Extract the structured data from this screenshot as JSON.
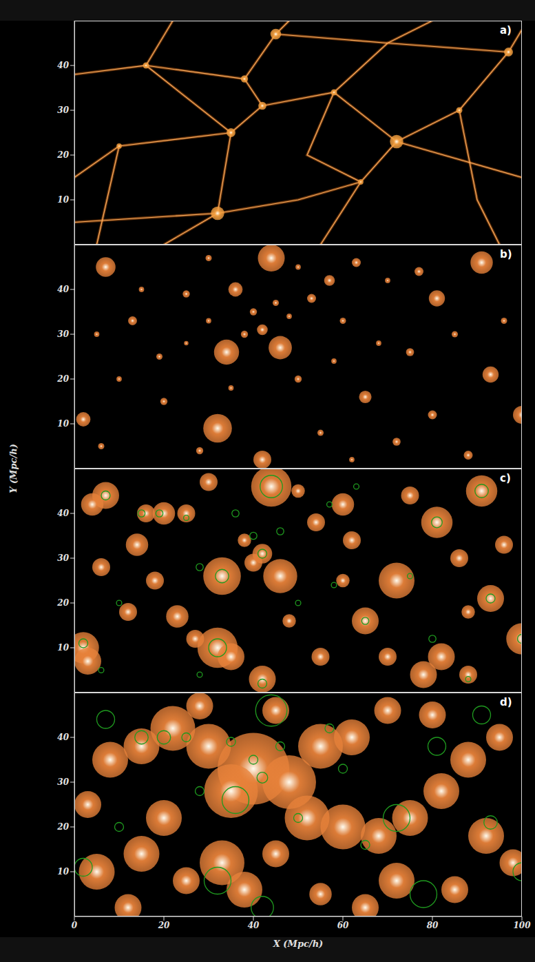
{
  "xlabel": "X (Mpc/h)",
  "ylabel": "Y (Mpc/h)",
  "chart_data": [
    {
      "type": "scatter",
      "label": "a)",
      "xlim": [
        0,
        100
      ],
      "ylim": [
        0,
        50
      ],
      "xticks": [
        0,
        20,
        40,
        60,
        80,
        100
      ],
      "yticks": [
        10,
        20,
        30,
        40
      ],
      "tick_labels": "y",
      "filaments": {
        "color": "#e0701a",
        "lines": [
          [
            [
              0,
              38
            ],
            [
              16,
              40
            ],
            [
              35,
              25
            ],
            [
              32,
              7
            ],
            [
              20,
              0
            ]
          ],
          [
            [
              16,
              40
            ],
            [
              38,
              37
            ],
            [
              45,
              47
            ],
            [
              48,
              50
            ]
          ],
          [
            [
              38,
              37
            ],
            [
              42,
              31
            ],
            [
              35,
              25
            ]
          ],
          [
            [
              42,
              31
            ],
            [
              58,
              34
            ],
            [
              72,
              23
            ],
            [
              100,
              15
            ]
          ],
          [
            [
              72,
              23
            ],
            [
              64,
              14
            ],
            [
              55,
              0
            ]
          ],
          [
            [
              72,
              23
            ],
            [
              86,
              30
            ],
            [
              97,
              43
            ],
            [
              100,
              48
            ]
          ],
          [
            [
              58,
              34
            ],
            [
              70,
              45
            ],
            [
              80,
              50
            ]
          ],
          [
            [
              32,
              7
            ],
            [
              50,
              10
            ],
            [
              64,
              14
            ]
          ],
          [
            [
              35,
              25
            ],
            [
              10,
              22
            ],
            [
              0,
              15
            ]
          ],
          [
            [
              10,
              22
            ],
            [
              5,
              0
            ]
          ],
          [
            [
              86,
              30
            ],
            [
              90,
              10
            ],
            [
              95,
              0
            ]
          ],
          [
            [
              45,
              47
            ],
            [
              70,
              45
            ],
            [
              97,
              43
            ]
          ],
          [
            [
              0,
              5
            ],
            [
              32,
              7
            ]
          ],
          [
            [
              22,
              50
            ],
            [
              16,
              40
            ]
          ],
          [
            [
              58,
              34
            ],
            [
              52,
              20
            ],
            [
              64,
              14
            ]
          ]
        ]
      },
      "halos": {
        "color": "#f5a040",
        "points": [
          [
            32,
            7,
            1.5
          ],
          [
            45,
            47,
            1.2
          ],
          [
            72,
            23,
            1.5
          ],
          [
            35,
            25,
            1
          ],
          [
            42,
            31,
            0.9
          ],
          [
            97,
            43,
            1
          ],
          [
            38,
            37,
            0.8
          ],
          [
            58,
            34,
            0.7
          ],
          [
            16,
            40,
            0.7
          ],
          [
            64,
            14,
            0.6
          ],
          [
            86,
            30,
            0.7
          ],
          [
            10,
            22,
            0.6
          ]
        ]
      }
    },
    {
      "type": "scatter",
      "label": "b)",
      "xlim": [
        0,
        100
      ],
      "ylim": [
        0,
        50
      ],
      "xticks": [
        0,
        20,
        40,
        60,
        80,
        100
      ],
      "yticks": [
        10,
        20,
        30,
        40
      ],
      "tick_labels": "y",
      "halos": {
        "color": "#e8823a",
        "points": [
          [
            32,
            9,
            3.2
          ],
          [
            44,
            47,
            3
          ],
          [
            34,
            26,
            2.8
          ],
          [
            46,
            27,
            2.6
          ],
          [
            81,
            38,
            1.8
          ],
          [
            91,
            46,
            2.5
          ],
          [
            93,
            21,
            1.8
          ],
          [
            65,
            16,
            1.4
          ],
          [
            7,
            45,
            2.2
          ],
          [
            100,
            12,
            2
          ],
          [
            2,
            11,
            1.6
          ],
          [
            42,
            2,
            2
          ],
          [
            36,
            40,
            1.6
          ],
          [
            53,
            38,
            1
          ],
          [
            57,
            42,
            1.2
          ],
          [
            40,
            35,
            0.8
          ],
          [
            42,
            31,
            1.2
          ],
          [
            38,
            30,
            0.8
          ],
          [
            45,
            37,
            0.7
          ],
          [
            30,
            33,
            0.6
          ],
          [
            48,
            34,
            0.6
          ],
          [
            25,
            39,
            0.8
          ],
          [
            19,
            25,
            0.7
          ],
          [
            13,
            33,
            1
          ],
          [
            60,
            33,
            0.7
          ],
          [
            68,
            28,
            0.6
          ],
          [
            75,
            26,
            0.9
          ],
          [
            85,
            30,
            0.7
          ],
          [
            80,
            12,
            1
          ],
          [
            72,
            6,
            0.9
          ],
          [
            55,
            8,
            0.7
          ],
          [
            20,
            15,
            0.8
          ],
          [
            10,
            20,
            0.6
          ],
          [
            6,
            5,
            0.7
          ],
          [
            28,
            4,
            0.8
          ],
          [
            88,
            3,
            1
          ],
          [
            63,
            46,
            1
          ],
          [
            70,
            42,
            0.6
          ],
          [
            15,
            40,
            0.6
          ],
          [
            50,
            20,
            0.8
          ],
          [
            58,
            24,
            0.6
          ],
          [
            25,
            28,
            0.5
          ],
          [
            35,
            18,
            0.6
          ],
          [
            62,
            2,
            0.6
          ],
          [
            96,
            33,
            0.7
          ],
          [
            5,
            30,
            0.6
          ],
          [
            30,
            47,
            0.7
          ],
          [
            50,
            45,
            0.6
          ],
          [
            77,
            44,
            1
          ]
        ]
      }
    },
    {
      "type": "scatter",
      "label": "c)",
      "xlim": [
        0,
        100
      ],
      "ylim": [
        0,
        50
      ],
      "xticks": [
        0,
        20,
        40,
        60,
        80,
        100
      ],
      "yticks": [
        10,
        20,
        30,
        40
      ],
      "tick_labels": "y",
      "halos": {
        "color": "#e8823a",
        "points": [
          [
            32,
            10,
            4.5
          ],
          [
            35,
            8,
            3
          ],
          [
            44,
            46,
            4.5
          ],
          [
            33,
            26,
            4.2
          ],
          [
            46,
            26,
            3.8
          ],
          [
            40,
            29,
            2
          ],
          [
            42,
            31,
            2.2
          ],
          [
            38,
            34,
            1.5
          ],
          [
            81,
            38,
            3.5
          ],
          [
            91,
            45,
            3.5
          ],
          [
            93,
            21,
            3
          ],
          [
            72,
            25,
            4
          ],
          [
            65,
            16,
            3
          ],
          [
            7,
            44,
            3
          ],
          [
            4,
            42,
            2.5
          ],
          [
            100,
            12,
            3.5
          ],
          [
            2,
            10,
            3.5
          ],
          [
            3,
            7,
            3
          ],
          [
            42,
            3,
            3
          ],
          [
            78,
            4,
            3
          ],
          [
            82,
            8,
            3
          ],
          [
            88,
            4,
            2
          ],
          [
            20,
            40,
            2.5
          ],
          [
            16,
            40,
            2
          ],
          [
            25,
            40,
            2
          ],
          [
            14,
            33,
            2.5
          ],
          [
            18,
            25,
            2
          ],
          [
            6,
            28,
            2
          ],
          [
            55,
            8,
            2
          ],
          [
            60,
            42,
            2.5
          ],
          [
            54,
            38,
            2
          ],
          [
            62,
            34,
            2
          ],
          [
            50,
            45,
            1.5
          ],
          [
            30,
            47,
            2
          ],
          [
            75,
            44,
            2
          ],
          [
            86,
            30,
            2
          ],
          [
            96,
            33,
            2
          ],
          [
            60,
            25,
            1.5
          ],
          [
            23,
            17,
            2.5
          ],
          [
            27,
            12,
            2
          ],
          [
            12,
            18,
            2
          ],
          [
            88,
            18,
            1.5
          ],
          [
            70,
            8,
            2
          ],
          [
            48,
            16,
            1.5
          ]
        ]
      },
      "contours": {
        "color": "#1f9a1f",
        "points": [
          [
            32,
            10,
            2
          ],
          [
            33,
            26,
            1.5
          ],
          [
            44,
            46,
            2.5
          ],
          [
            42,
            31,
            1
          ],
          [
            40,
            35,
            0.8
          ],
          [
            36,
            40,
            0.8
          ],
          [
            46,
            36,
            0.8
          ],
          [
            81,
            38,
            1.2
          ],
          [
            91,
            45,
            1.5
          ],
          [
            93,
            21,
            1
          ],
          [
            7,
            44,
            1
          ],
          [
            65,
            16,
            0.8
          ],
          [
            2,
            11,
            1
          ],
          [
            42,
            2,
            1
          ],
          [
            100,
            12,
            1
          ],
          [
            28,
            28,
            0.8
          ],
          [
            15,
            40,
            0.8
          ],
          [
            19,
            40,
            0.8
          ],
          [
            80,
            12,
            0.8
          ],
          [
            50,
            20,
            0.6
          ],
          [
            57,
            42,
            0.6
          ],
          [
            75,
            26,
            0.6
          ],
          [
            10,
            20,
            0.6
          ],
          [
            6,
            5,
            0.6
          ],
          [
            28,
            4,
            0.6
          ],
          [
            88,
            3,
            0.6
          ],
          [
            63,
            46,
            0.6
          ],
          [
            25,
            39,
            0.6
          ],
          [
            58,
            24,
            0.6
          ]
        ]
      }
    },
    {
      "type": "scatter",
      "label": "d)",
      "xlim": [
        0,
        100
      ],
      "ylim": [
        0,
        50
      ],
      "xticks": [
        0,
        20,
        40,
        60,
        80,
        100
      ],
      "yticks": [
        10,
        20,
        30,
        40
      ],
      "tick_labels": true,
      "halos": {
        "color": "#e8823a",
        "points": [
          [
            40,
            33,
            8
          ],
          [
            35,
            28,
            6
          ],
          [
            48,
            30,
            6
          ],
          [
            30,
            38,
            5
          ],
          [
            22,
            42,
            5
          ],
          [
            15,
            38,
            4
          ],
          [
            8,
            35,
            4
          ],
          [
            55,
            38,
            5
          ],
          [
            62,
            40,
            4
          ],
          [
            52,
            22,
            5
          ],
          [
            60,
            20,
            5
          ],
          [
            68,
            18,
            4
          ],
          [
            75,
            22,
            4
          ],
          [
            82,
            28,
            4
          ],
          [
            88,
            35,
            4
          ],
          [
            95,
            40,
            3
          ],
          [
            80,
            45,
            3
          ],
          [
            70,
            46,
            3
          ],
          [
            45,
            46,
            3
          ],
          [
            28,
            47,
            3
          ],
          [
            33,
            12,
            5
          ],
          [
            38,
            6,
            4
          ],
          [
            25,
            8,
            3
          ],
          [
            15,
            14,
            4
          ],
          [
            5,
            10,
            4
          ],
          [
            3,
            25,
            3
          ],
          [
            20,
            22,
            4
          ],
          [
            45,
            14,
            3
          ],
          [
            72,
            8,
            4
          ],
          [
            85,
            6,
            3
          ],
          [
            92,
            18,
            4
          ],
          [
            98,
            12,
            3
          ],
          [
            65,
            2,
            3
          ],
          [
            55,
            5,
            2.5
          ],
          [
            12,
            2,
            3
          ]
        ]
      },
      "contours": {
        "color": "#1f9a1f",
        "points": [
          [
            36,
            26,
            3
          ],
          [
            44,
            46,
            3.5
          ],
          [
            7,
            44,
            2
          ],
          [
            32,
            8,
            3
          ],
          [
            72,
            22,
            3
          ],
          [
            81,
            38,
            2
          ],
          [
            91,
            45,
            2
          ],
          [
            42,
            31,
            1.2
          ],
          [
            40,
            35,
            1
          ],
          [
            35,
            39,
            1
          ],
          [
            46,
            38,
            1
          ],
          [
            65,
            16,
            1
          ],
          [
            2,
            11,
            2
          ],
          [
            42,
            2,
            2.5
          ],
          [
            78,
            5,
            3
          ],
          [
            100,
            10,
            2
          ],
          [
            15,
            40,
            1.5
          ],
          [
            20,
            40,
            1.5
          ],
          [
            28,
            28,
            1
          ],
          [
            50,
            22,
            1
          ],
          [
            57,
            42,
            1
          ],
          [
            93,
            21,
            1.5
          ],
          [
            60,
            33,
            1
          ],
          [
            10,
            20,
            1
          ],
          [
            25,
            40,
            1
          ]
        ]
      }
    }
  ]
}
